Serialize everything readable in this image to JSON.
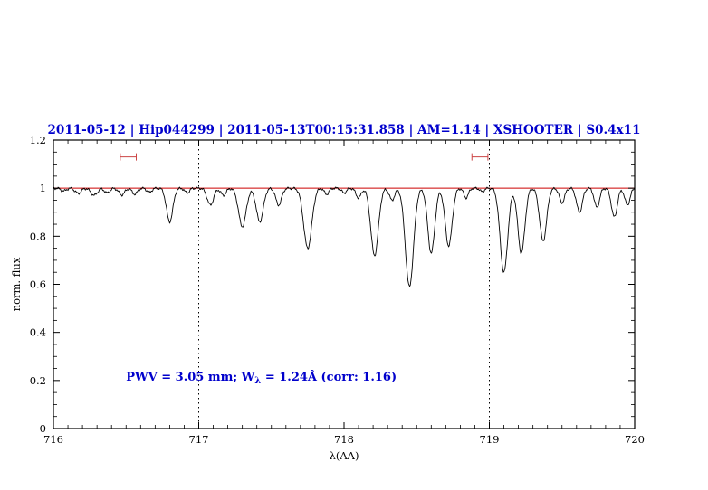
{
  "header": {
    "title": "2011-05-12 | Hip044299 | 2011-05-13T00:15:31.858 | AM=1.14 | XSHOOTER | S0.4x11"
  },
  "colors": {
    "title": "#0000cc",
    "annotation": "#0000cc",
    "continuum": "#cc0000",
    "range_marker": "#cc4444",
    "spectrum": "#000000",
    "axis": "#000000"
  },
  "chart_data": {
    "type": "line",
    "title": "2011-05-12 | Hip044299 | 2011-05-13T00:15:31.858 | AM=1.14 | XSHOOTER | S0.4x11",
    "xlabel": "λ(AA)",
    "ylabel": "norm. flux",
    "xlim": [
      716,
      720
    ],
    "ylim": [
      0,
      1.2
    ],
    "x_ticks": [
      716,
      717,
      718,
      719,
      720
    ],
    "y_ticks": [
      0,
      0.2,
      0.4,
      0.6,
      0.8,
      1,
      1.2
    ],
    "x_minor_step": 0.1,
    "y_minor_step": 0.05,
    "grid": "off",
    "legend": "none",
    "continuum_y": 1.0,
    "dotted_vlines_x": [
      717,
      719
    ],
    "range_markers": [
      {
        "x_start": 716.46,
        "x_end": 716.57,
        "y": 1.13
      },
      {
        "x_start": 718.88,
        "x_end": 718.99,
        "y": 1.13
      }
    ],
    "annotation": {
      "text_prefix": "PWV  =  3.05 mm;  W",
      "text_sub": "λ",
      "text_suffix": "  =  1.24Å  (corr: 1.16)",
      "x": 716.5,
      "y": 0.2
    },
    "series": [
      {
        "name": "telluric-water-spectrum",
        "model": "gaussian_absorption",
        "continuum": 1.0,
        "lines": [
          [
            716.07,
            0.012,
            0.018
          ],
          [
            716.17,
            0.022,
            0.02
          ],
          [
            716.28,
            0.03,
            0.022
          ],
          [
            716.37,
            0.02,
            0.018
          ],
          [
            716.47,
            0.028,
            0.02
          ],
          [
            716.56,
            0.025,
            0.018
          ],
          [
            716.66,
            0.018,
            0.016
          ],
          [
            716.8,
            0.14,
            0.022
          ],
          [
            716.92,
            0.02,
            0.016
          ],
          [
            717.08,
            0.07,
            0.022
          ],
          [
            717.17,
            0.03,
            0.018
          ],
          [
            717.3,
            0.16,
            0.026
          ],
          [
            717.42,
            0.14,
            0.024
          ],
          [
            717.55,
            0.07,
            0.02
          ],
          [
            717.75,
            0.25,
            0.028
          ],
          [
            717.88,
            0.025,
            0.016
          ],
          [
            718.0,
            0.02,
            0.016
          ],
          [
            718.1,
            0.04,
            0.018
          ],
          [
            718.21,
            0.28,
            0.026
          ],
          [
            718.33,
            0.05,
            0.018
          ],
          [
            718.45,
            0.41,
            0.028
          ],
          [
            718.6,
            0.27,
            0.024
          ],
          [
            718.72,
            0.24,
            0.024
          ],
          [
            718.84,
            0.04,
            0.016
          ],
          [
            718.95,
            0.015,
            0.014
          ],
          [
            719.1,
            0.35,
            0.026
          ],
          [
            719.22,
            0.27,
            0.024
          ],
          [
            719.37,
            0.22,
            0.024
          ],
          [
            719.5,
            0.06,
            0.018
          ],
          [
            719.62,
            0.1,
            0.02
          ],
          [
            719.74,
            0.08,
            0.018
          ],
          [
            719.86,
            0.12,
            0.02
          ],
          [
            719.95,
            0.07,
            0.018
          ]
        ]
      }
    ]
  }
}
